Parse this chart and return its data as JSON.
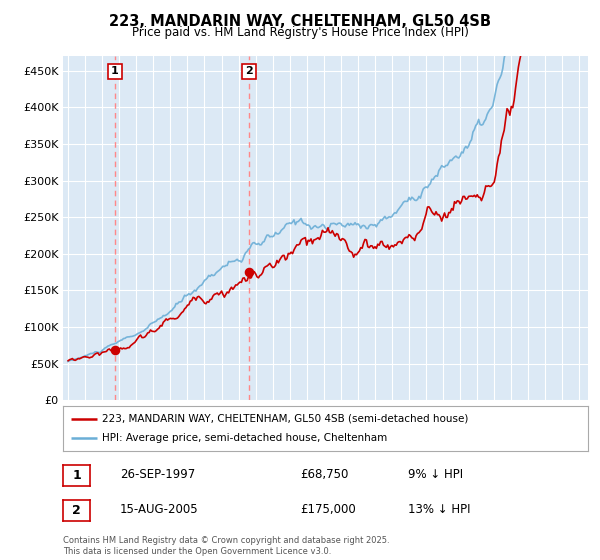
{
  "title_line1": "223, MANDARIN WAY, CHELTENHAM, GL50 4SB",
  "title_line2": "Price paid vs. HM Land Registry's House Price Index (HPI)",
  "ylim": [
    0,
    470000
  ],
  "xlim_start": 1994.7,
  "xlim_end": 2025.5,
  "plot_bg_color": "#dce9f5",
  "hpi_color": "#6baed6",
  "price_color": "#cc0000",
  "vline_color": "#ff8888",
  "marker_color": "#cc0000",
  "purchase1_date": 1997.75,
  "purchase1_price": 68750,
  "purchase2_date": 2005.62,
  "purchase2_price": 175000,
  "legend_red_label": "223, MANDARIN WAY, CHELTENHAM, GL50 4SB (semi-detached house)",
  "legend_blue_label": "HPI: Average price, semi-detached house, Cheltenham",
  "table_row1": [
    "1",
    "26-SEP-1997",
    "£68,750",
    "9% ↓ HPI"
  ],
  "table_row2": [
    "2",
    "15-AUG-2005",
    "£175,000",
    "13% ↓ HPI"
  ],
  "footer": "Contains HM Land Registry data © Crown copyright and database right 2025.\nThis data is licensed under the Open Government Licence v3.0.",
  "yticks": [
    0,
    50000,
    100000,
    150000,
    200000,
    250000,
    300000,
    350000,
    400000,
    450000
  ],
  "ytick_labels": [
    "£0",
    "£50K",
    "£100K",
    "£150K",
    "£200K",
    "£250K",
    "£300K",
    "£350K",
    "£400K",
    "£450K"
  ]
}
